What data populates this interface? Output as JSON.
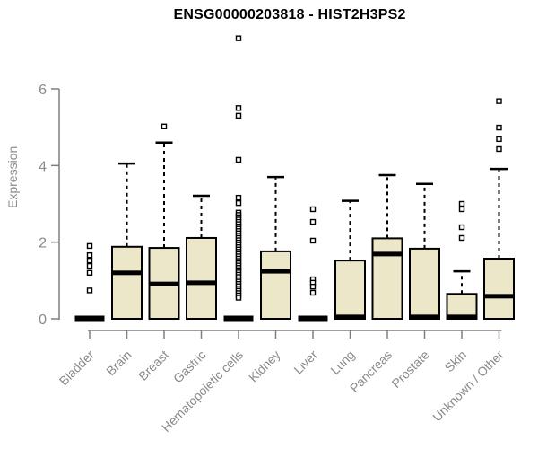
{
  "chart_data": {
    "type": "boxplot",
    "title": "ENSG00000203818 - HIST2H3PS2",
    "ylabel": "Expression",
    "xlabel": "",
    "ylim": [
      0,
      6
    ],
    "yticks": [
      0,
      2,
      4,
      6
    ],
    "grid": false,
    "legend": "none",
    "colors": {
      "box_fill": "#ece7c8",
      "box_border": "#000000",
      "median": "#000000",
      "whisker": "#000000",
      "axis": "#7f7f7f",
      "axis_text": "#8a8a8a",
      "title_text": "#000000",
      "background": "#ffffff"
    },
    "categories": [
      "Bladder",
      "Brain",
      "Breast",
      "Gastric",
      "Hematopoietic cells",
      "Kidney",
      "Liver",
      "Lung",
      "Pancreas",
      "Prostate",
      "Skin",
      "Unknown / Other"
    ],
    "boxes": [
      {
        "label": "Bladder",
        "q1": 0,
        "median": 0,
        "q3": 0,
        "whisker_low": 0,
        "whisker_high": 0,
        "outliers": [
          1.9,
          1.66,
          1.52,
          1.38,
          1.2,
          0.74
        ]
      },
      {
        "label": "Brain",
        "q1": 0,
        "median": 1.2,
        "q3": 1.88,
        "whisker_low": 0,
        "whisker_high": 4.05,
        "outliers": []
      },
      {
        "label": "Breast",
        "q1": 0,
        "median": 0.91,
        "q3": 1.85,
        "whisker_low": 0,
        "whisker_high": 4.6,
        "outliers": [
          5.02
        ]
      },
      {
        "label": "Gastric",
        "q1": 0,
        "median": 0.94,
        "q3": 2.11,
        "whisker_low": 0,
        "whisker_high": 3.21,
        "outliers": []
      },
      {
        "label": "Hematopoietic cells",
        "q1": 0,
        "median": 0,
        "q3": 0,
        "whisker_low": 0,
        "whisker_high": 0,
        "outliers": [
          7.32,
          5.5,
          5.3,
          4.15,
          3.16,
          3.02,
          2.77,
          2.71,
          2.65,
          2.59,
          2.53,
          2.47,
          2.41,
          2.35,
          2.29,
          2.23,
          2.17,
          2.11,
          2.05,
          1.99,
          1.93,
          1.87,
          1.81,
          1.75,
          1.69,
          1.63,
          1.57,
          1.51,
          1.45,
          1.39,
          1.33,
          1.27,
          1.21,
          1.15,
          1.09,
          1.03,
          0.97,
          0.91,
          0.85,
          0.79,
          0.73,
          0.67,
          0.61,
          0.55
        ]
      },
      {
        "label": "Kidney",
        "q1": 0,
        "median": 1.24,
        "q3": 1.76,
        "whisker_low": 0,
        "whisker_high": 3.7,
        "outliers": []
      },
      {
        "label": "Liver",
        "q1": 0,
        "median": 0,
        "q3": 0,
        "whisker_low": 0,
        "whisker_high": 0,
        "outliers": [
          2.86,
          2.53,
          2.04,
          1.03,
          0.94,
          0.84,
          0.68
        ]
      },
      {
        "label": "Lung",
        "q1": 0,
        "median": 0.05,
        "q3": 1.52,
        "whisker_low": 0,
        "whisker_high": 3.08,
        "outliers": []
      },
      {
        "label": "Pancreas",
        "q1": 0,
        "median": 1.69,
        "q3": 2.1,
        "whisker_low": 0,
        "whisker_high": 3.75,
        "outliers": []
      },
      {
        "label": "Prostate",
        "q1": 0,
        "median": 0.05,
        "q3": 1.83,
        "whisker_low": 0,
        "whisker_high": 3.52,
        "outliers": []
      },
      {
        "label": "Skin",
        "q1": 0,
        "median": 0.05,
        "q3": 0.65,
        "whisker_low": 0,
        "whisker_high": 1.24,
        "outliers": [
          3.0,
          2.86,
          2.39,
          2.11
        ]
      },
      {
        "label": "Unknown / Other",
        "q1": 0,
        "median": 0.59,
        "q3": 1.57,
        "whisker_low": 0,
        "whisker_high": 3.91,
        "outliers": [
          5.68,
          4.99,
          4.69,
          4.43
        ]
      }
    ]
  }
}
